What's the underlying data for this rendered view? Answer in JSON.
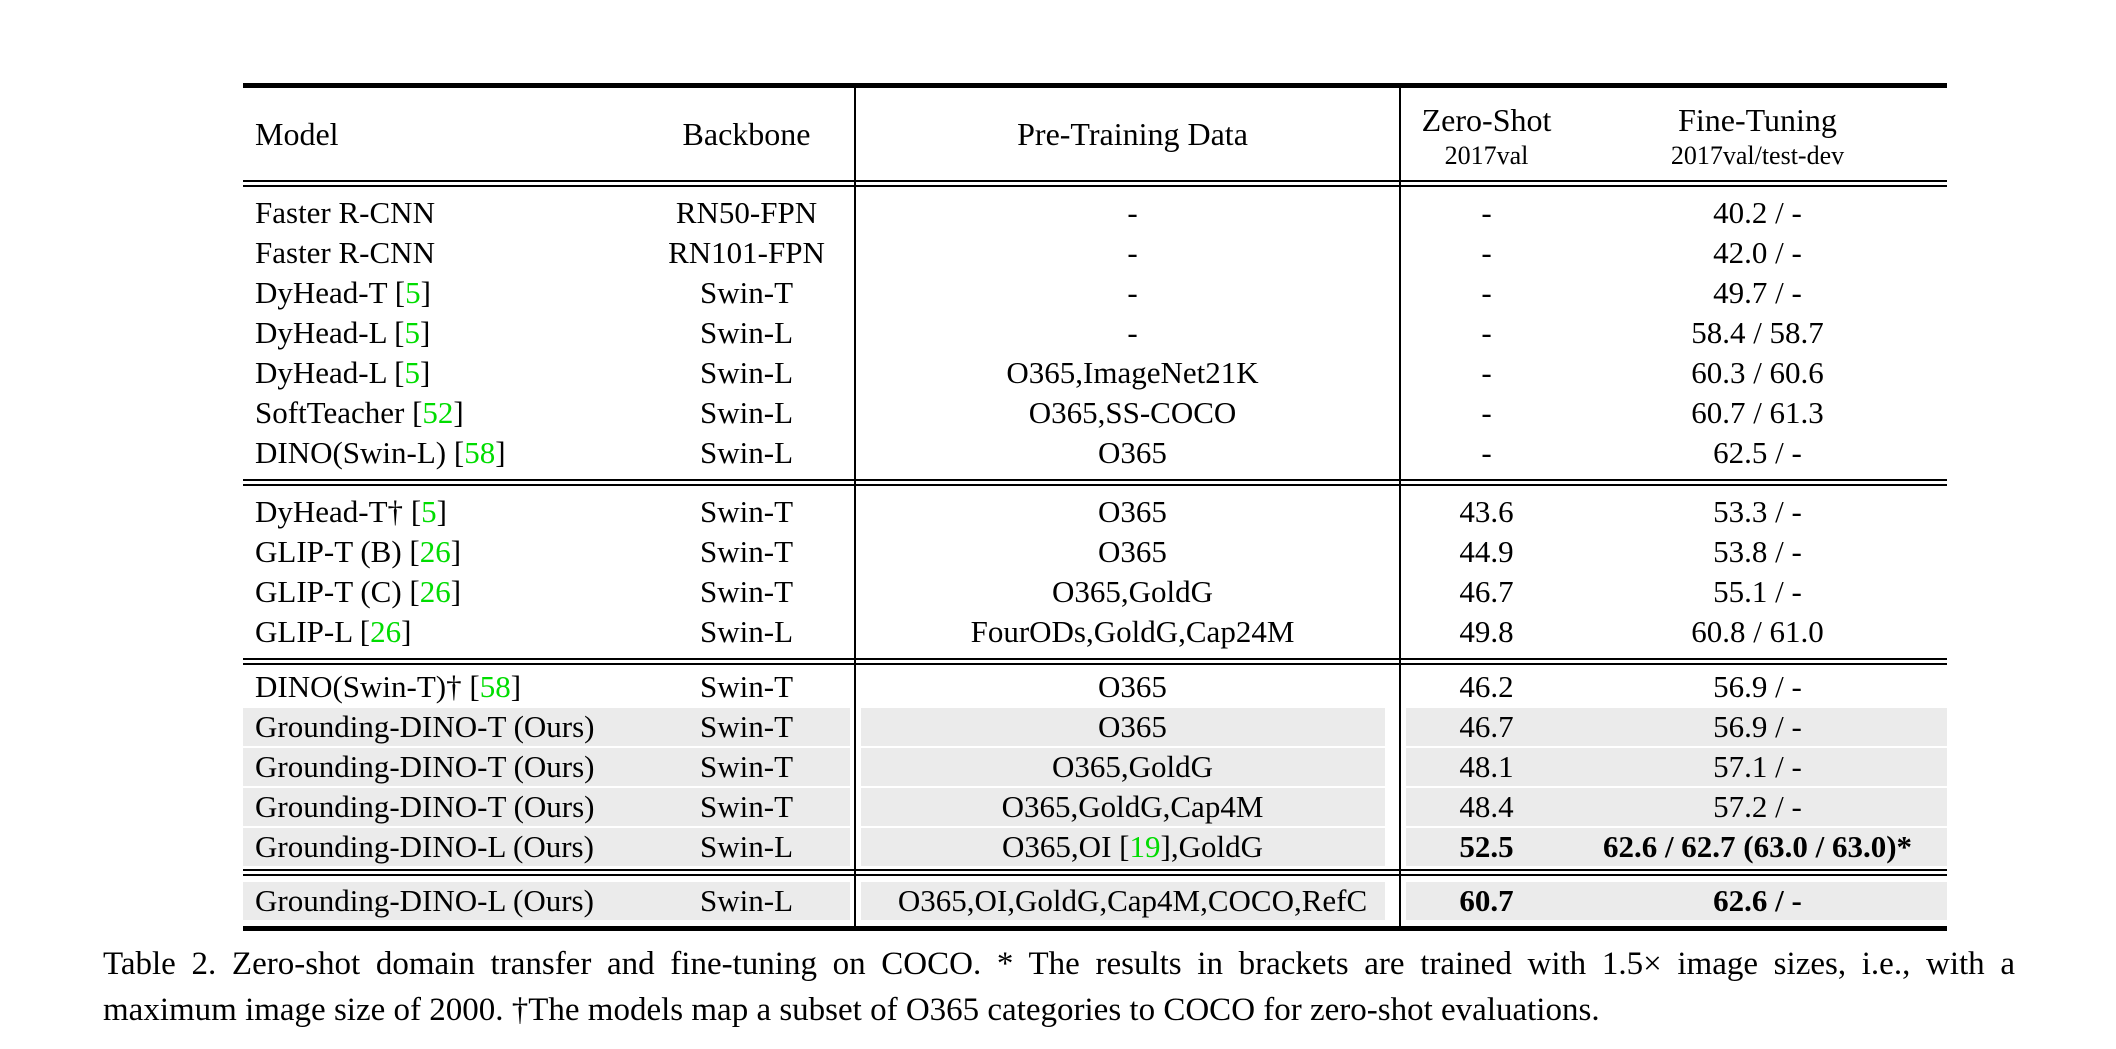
{
  "colors": {
    "citation_green": "#00DC00",
    "row_highlight": "#EBEBEB"
  },
  "table": {
    "headers": {
      "model": "Model",
      "backbone": "Backbone",
      "pretrain": "Pre-Training Data",
      "zeroshot_line1": "Zero-Shot",
      "zeroshot_line2": "2017val",
      "finetune_line1": "Fine-Tuning",
      "finetune_line2": "2017val/test-dev"
    },
    "sections": [
      {
        "rows": [
          {
            "model_pre": "Faster R-CNN",
            "model_cite": "",
            "backbone": "RN50-FPN",
            "pt_pre": "-",
            "pt_cite": "",
            "pt_post": "",
            "zs": "-",
            "ft": "40.2 / -",
            "hl": false,
            "bold": false
          },
          {
            "model_pre": "Faster R-CNN",
            "model_cite": "",
            "backbone": "RN101-FPN",
            "pt_pre": "-",
            "pt_cite": "",
            "pt_post": "",
            "zs": "-",
            "ft": "42.0 / -",
            "hl": false,
            "bold": false
          },
          {
            "model_pre": "DyHead-T ",
            "model_cite": "5",
            "backbone": "Swin-T",
            "pt_pre": "-",
            "pt_cite": "",
            "pt_post": "",
            "zs": "-",
            "ft": "49.7 / -",
            "hl": false,
            "bold": false
          },
          {
            "model_pre": "DyHead-L ",
            "model_cite": "5",
            "backbone": "Swin-L",
            "pt_pre": "-",
            "pt_cite": "",
            "pt_post": "",
            "zs": "-",
            "ft": "58.4 / 58.7",
            "hl": false,
            "bold": false
          },
          {
            "model_pre": "DyHead-L ",
            "model_cite": "5",
            "backbone": "Swin-L",
            "pt_pre": "O365,ImageNet21K",
            "pt_cite": "",
            "pt_post": "",
            "zs": "-",
            "ft": "60.3 / 60.6",
            "hl": false,
            "bold": false
          },
          {
            "model_pre": "SoftTeacher ",
            "model_cite": "52",
            "backbone": "Swin-L",
            "pt_pre": "O365,SS-COCO",
            "pt_cite": "",
            "pt_post": "",
            "zs": "-",
            "ft": "60.7 / 61.3",
            "hl": false,
            "bold": false
          },
          {
            "model_pre": "DINO(Swin-L) ",
            "model_cite": "58",
            "backbone": "Swin-L",
            "pt_pre": "O365",
            "pt_cite": "",
            "pt_post": "",
            "zs": "-",
            "ft": "62.5 / -",
            "hl": false,
            "bold": false
          }
        ]
      },
      {
        "rows": [
          {
            "model_pre": "DyHead-T† ",
            "model_cite": "5",
            "backbone": "Swin-T",
            "pt_pre": "O365",
            "pt_cite": "",
            "pt_post": "",
            "zs": "43.6",
            "ft": "53.3 / -",
            "hl": false,
            "bold": false
          },
          {
            "model_pre": "GLIP-T (B) ",
            "model_cite": "26",
            "backbone": "Swin-T",
            "pt_pre": "O365",
            "pt_cite": "",
            "pt_post": "",
            "zs": "44.9",
            "ft": "53.8 / -",
            "hl": false,
            "bold": false
          },
          {
            "model_pre": "GLIP-T (C) ",
            "model_cite": "26",
            "backbone": "Swin-T",
            "pt_pre": "O365,GoldG",
            "pt_cite": "",
            "pt_post": "",
            "zs": "46.7",
            "ft": "55.1 / -",
            "hl": false,
            "bold": false
          },
          {
            "model_pre": "GLIP-L ",
            "model_cite": "26",
            "backbone": "Swin-L",
            "pt_pre": "FourODs,GoldG,Cap24M",
            "pt_cite": "",
            "pt_post": "",
            "zs": "49.8",
            "ft": "60.8 / 61.0",
            "hl": false,
            "bold": false
          }
        ]
      },
      {
        "rows": [
          {
            "model_pre": "DINO(Swin-T)† ",
            "model_cite": "58",
            "backbone": "Swin-T",
            "pt_pre": "O365",
            "pt_cite": "",
            "pt_post": "",
            "zs": "46.2",
            "ft": "56.9 / -",
            "hl": false,
            "bold": false
          },
          {
            "model_pre": "Grounding-DINO-T (Ours)",
            "model_cite": "",
            "backbone": "Swin-T",
            "pt_pre": "O365",
            "pt_cite": "",
            "pt_post": "",
            "zs": "46.7",
            "ft": "56.9 / -",
            "hl": true,
            "bold": false
          },
          {
            "model_pre": "Grounding-DINO-T (Ours)",
            "model_cite": "",
            "backbone": "Swin-T",
            "pt_pre": "O365,GoldG",
            "pt_cite": "",
            "pt_post": "",
            "zs": "48.1",
            "ft": "57.1 / -",
            "hl": true,
            "bold": false
          },
          {
            "model_pre": "Grounding-DINO-T (Ours)",
            "model_cite": "",
            "backbone": "Swin-T",
            "pt_pre": "O365,GoldG,Cap4M",
            "pt_cite": "",
            "pt_post": "",
            "zs": "48.4",
            "ft": "57.2 / -",
            "hl": true,
            "bold": false
          },
          {
            "model_pre": "Grounding-DINO-L (Ours)",
            "model_cite": "",
            "backbone": "Swin-L",
            "pt_pre": "O365,OI ",
            "pt_cite": "19",
            "pt_post": ",GoldG",
            "zs": "52.5",
            "ft": "62.6 / 62.7 (63.0 / 63.0)*",
            "hl": true,
            "bold": true
          }
        ]
      },
      {
        "rows": [
          {
            "model_pre": "Grounding-DINO-L (Ours)",
            "model_cite": "",
            "backbone": "Swin-L",
            "pt_pre": "O365,OI,GoldG,Cap4M,COCO,RefC",
            "pt_cite": "",
            "pt_post": "",
            "zs": "60.7",
            "ft": "62.6 / -",
            "hl": true,
            "bold": true
          }
        ]
      }
    ]
  },
  "caption": {
    "line1": "Table 2.  Zero-shot domain transfer and fine-tuning on COCO. * The results in brackets are trained with 1.5× image sizes, i.e., with a",
    "line2": "maximum image size of 2000. †The models map a subset of O365 categories to COCO for zero-shot evaluations."
  }
}
